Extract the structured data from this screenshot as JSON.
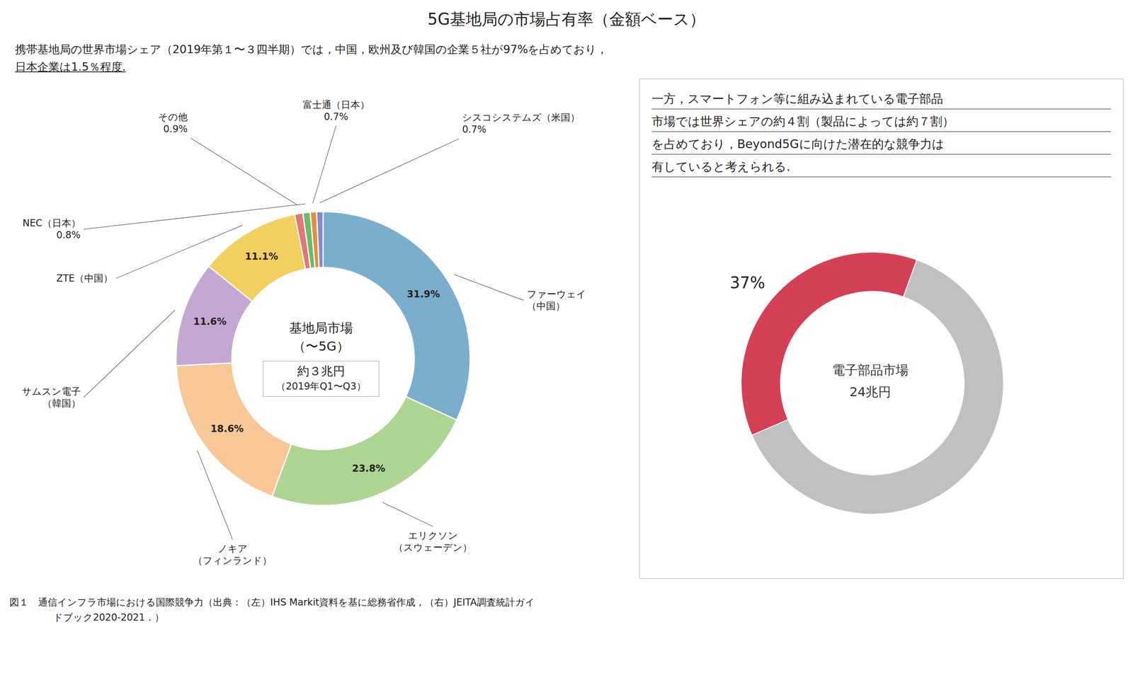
{
  "title": "5G基地局の市場占有率（金額ベース）",
  "subtitle": [
    "携帯基地局の世界市場シェア（2019年第１〜３四半期）では，中国，欧州及び韓国の企業５社が97%を占めており，",
    "日本企業は1.5％程度."
  ],
  "annotations": [
    "図１　通信インフラ市場における国際競争力（出典：（左）IHS Markit資料を基に総務省作成，（右）JEITA調査統計ガイ",
    "ドブック2020-2021．）"
  ],
  "chart_data": [
    {
      "type": "pie",
      "categories": [
        "ファーウェイ\n（中国）",
        "エリクソン\n（スウェーデン）",
        "ノキア\n（フィンランド）",
        "サムスン電子\n（韓国）",
        "ZTE（中国）",
        "その他",
        "NEC（日本）",
        "富士通（日本）",
        "シスコシステムズ（米国）"
      ],
      "values": [
        31.9,
        23.8,
        18.6,
        11.6,
        11.1,
        0.9,
        0.8,
        0.7,
        0.7
      ],
      "colors": [
        "#7aaecc",
        "#aed491",
        "#f7c896",
        "#c3a8d1",
        "#f2d060",
        "#e07878",
        "#6dba6d",
        "#e09040",
        "#8888cc"
      ],
      "data_labels": true,
      "value_labels": [
        "31.9%",
        "23.8%",
        "18.6%",
        "11.6%",
        "11.1%",
        "0.9%",
        "0.8%",
        "0.7%",
        "0.7%"
      ],
      "annotations": [
        "基地局市場",
        "（〜5G）",
        "約３兆円",
        "（2019年Q1〜Q3）"
      ]
    },
    {
      "type": "pie",
      "subtitle": [
        "一方，スマートフォン等に組み込まれている電子部品",
        "市場では世界シェアの約４割（製品によっては約７割）",
        "を占めており，Beyond5Gに向けた潜在的な競争力は",
        "有していると考えられる."
      ],
      "values": [
        37,
        63
      ],
      "colors": [
        "#d44055",
        "#c0c0c0"
      ],
      "data_labels": true,
      "value_labels": [
        "37%",
        null
      ],
      "annotations": [
        "電子部品市場",
        "24兆円"
      ]
    }
  ]
}
